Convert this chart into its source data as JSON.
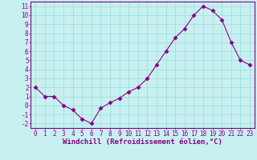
{
  "x": [
    0,
    1,
    2,
    3,
    4,
    5,
    6,
    7,
    8,
    9,
    10,
    11,
    12,
    13,
    14,
    15,
    16,
    17,
    18,
    19,
    20,
    21,
    22,
    23
  ],
  "y": [
    2,
    1,
    1,
    0,
    -0.5,
    -1.5,
    -2,
    -0.3,
    0.3,
    0.8,
    1.5,
    2,
    3,
    4.5,
    6,
    7.5,
    8.5,
    10,
    11,
    10.5,
    9.5,
    7,
    5,
    4.5
  ],
  "line_color": "#880088",
  "marker": "D",
  "marker_size": 2.5,
  "bg_color": "#c8f0f0",
  "grid_color": "#99dddd",
  "xlabel": "Windchill (Refroidissement éolien,°C)",
  "xlabel_fontsize": 6.5,
  "xlim": [
    -0.5,
    23.5
  ],
  "ylim": [
    -2.5,
    11.5
  ],
  "yticks": [
    -2,
    -1,
    0,
    1,
    2,
    3,
    4,
    5,
    6,
    7,
    8,
    9,
    10,
    11
  ],
  "xticks": [
    0,
    1,
    2,
    3,
    4,
    5,
    6,
    7,
    8,
    9,
    10,
    11,
    12,
    13,
    14,
    15,
    16,
    17,
    18,
    19,
    20,
    21,
    22,
    23
  ],
  "tick_fontsize": 5.5,
  "tick_color": "#880088",
  "spine_color": "#880088",
  "figsize": [
    3.2,
    2.0
  ],
  "dpi": 100
}
